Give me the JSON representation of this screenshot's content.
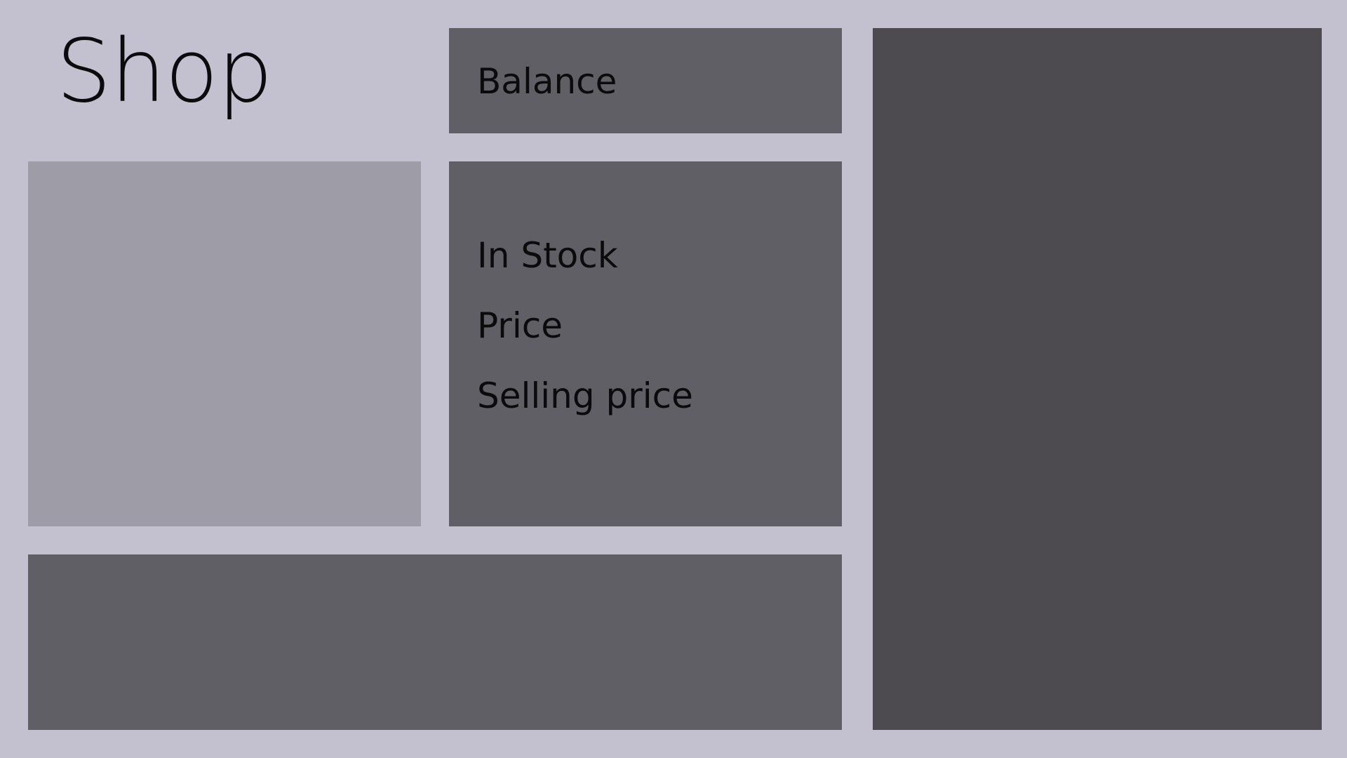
{
  "header": {
    "title": "Shop"
  },
  "balance": {
    "label": "Balance"
  },
  "details": {
    "rows": [
      {
        "label": "In Stock"
      },
      {
        "label": "Price"
      },
      {
        "label": "Selling price"
      }
    ]
  },
  "colors": {
    "background": "#c3c1cf",
    "panel": "#615f66",
    "image_panel": "#9e9ca6",
    "side_panel": "#4d4b50",
    "text": "#0b0b0d"
  }
}
